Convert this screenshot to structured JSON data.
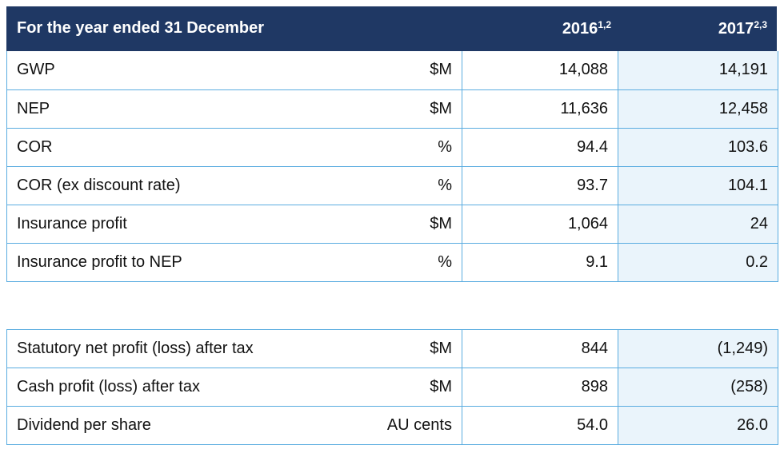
{
  "header": {
    "title": "For the year ended 31 December",
    "col_2016": "2016",
    "col_2016_notes": "1,2",
    "col_2017": "2017",
    "col_2017_notes": "2,3"
  },
  "main_rows": [
    {
      "label": "GWP",
      "unit": "$M",
      "y2016": "14,088",
      "y2017": "14,191"
    },
    {
      "label": "NEP",
      "unit": "$M",
      "y2016": "11,636",
      "y2017": "12,458"
    },
    {
      "label": "COR",
      "unit": "%",
      "y2016": "94.4",
      "y2017": "103.6"
    },
    {
      "label": "COR (ex discount rate)",
      "unit": "%",
      "y2016": "93.7",
      "y2017": "104.1"
    },
    {
      "label": "Insurance profit",
      "unit": "$M",
      "y2016": "1,064",
      "y2017": "24"
    },
    {
      "label": "Insurance profit to NEP",
      "unit": "%",
      "y2016": "9.1",
      "y2017": "0.2"
    }
  ],
  "secondary_rows": [
    {
      "label": "Statutory net profit (loss) after tax",
      "unit": "$M",
      "y2016": "844",
      "y2017": "(1,249)"
    },
    {
      "label": "Cash profit (loss) after tax",
      "unit": "$M",
      "y2016": "898",
      "y2017": "(258)"
    },
    {
      "label": "Dividend per share",
      "unit": "AU cents",
      "y2016": "54.0",
      "y2017": "26.0"
    }
  ]
}
